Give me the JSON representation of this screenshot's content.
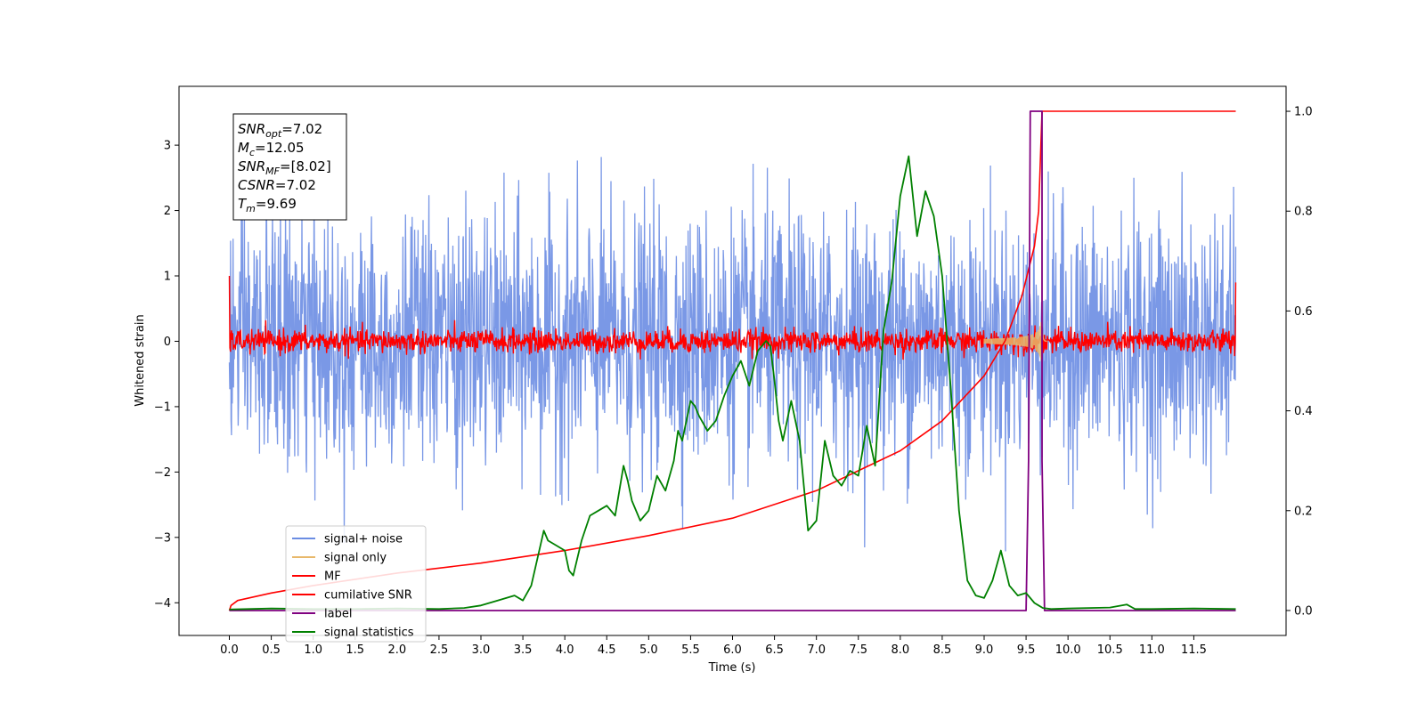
{
  "chart_data": {
    "type": "line",
    "xlabel": "Time (s)",
    "ylabel": "Whitened strain",
    "xlim": [
      -0.6,
      12.6
    ],
    "ylim": [
      -4.5,
      3.9
    ],
    "y2lim": [
      -0.05,
      1.05
    ],
    "x_ticks": [
      "0.0",
      "0.5",
      "1.0",
      "1.5",
      "2.0",
      "2.5",
      "3.0",
      "3.5",
      "4.0",
      "4.5",
      "5.0",
      "5.5",
      "6.0",
      "6.5",
      "7.0",
      "7.5",
      "8.0",
      "8.5",
      "9.0",
      "9.5",
      "10.0",
      "10.5",
      "11.0",
      "11.5"
    ],
    "y_ticks": [
      "3",
      "2",
      "1",
      "0",
      "−1",
      "−2",
      "−3",
      "−4"
    ],
    "y2_ticks": [
      "0.0",
      "0.2",
      "0.4",
      "0.6",
      "0.8",
      "1.0"
    ],
    "info_box": [
      {
        "sym": "SNR",
        "sub": "opt",
        "rest": "=7.02"
      },
      {
        "sym": "M",
        "sub": "c",
        "rest": "=12.05"
      },
      {
        "sym": "SNR",
        "sub": "MF",
        "rest": "=[8.02]"
      },
      {
        "sym": "CSNR",
        "sub": "",
        "rest": "=7.02"
      },
      {
        "sym": "T",
        "sub": "m",
        "rest": "=9.69"
      }
    ],
    "series": [
      {
        "name": "signal+ noise",
        "axis": "left",
        "color": "#6b8de3",
        "kind": "noise",
        "sigma": 0.95,
        "x_range": [
          0.0,
          12.0
        ],
        "approx_extremes": [
          3.5,
          -3.6
        ]
      },
      {
        "name": "signal only",
        "axis": "left",
        "color": "#e8b86b",
        "kind": "chirp",
        "merger_time": 9.69,
        "peak_amplitude": 0.45,
        "x_range": [
          9.0,
          9.75
        ]
      },
      {
        "name": "MF",
        "axis": "left",
        "color": "#ff0000",
        "kind": "noise",
        "sigma": 0.09,
        "start_value": 1.0,
        "end_value": 0.9,
        "x_range": [
          0.0,
          12.0
        ]
      },
      {
        "name": "cumilative SNR",
        "axis": "right",
        "color": "#ff0000",
        "x": [
          0.0,
          0.02,
          0.1,
          0.5,
          1.0,
          2.0,
          3.0,
          4.0,
          5.0,
          6.0,
          7.0,
          7.5,
          8.0,
          8.5,
          9.0,
          9.25,
          9.45,
          9.6,
          9.65,
          9.69,
          12.0
        ],
        "y": [
          0.0,
          0.01,
          0.02,
          0.035,
          0.05,
          0.075,
          0.095,
          0.12,
          0.15,
          0.185,
          0.24,
          0.28,
          0.32,
          0.38,
          0.47,
          0.54,
          0.63,
          0.73,
          0.8,
          1.0,
          1.0
        ]
      },
      {
        "name": "label",
        "axis": "right",
        "color": "#800080",
        "x": [
          0.0,
          9.5,
          9.53,
          9.55,
          9.55,
          9.69,
          9.69,
          9.72,
          9.72,
          12.0
        ],
        "y": [
          0.0,
          0.0,
          0.3,
          1.0,
          1.0,
          1.0,
          0.3,
          0.0,
          0.0,
          0.0
        ]
      },
      {
        "name": "signal statistics",
        "axis": "right",
        "color": "#008000",
        "x": [
          0.0,
          0.5,
          1.0,
          1.5,
          2.0,
          2.5,
          2.8,
          3.0,
          3.2,
          3.4,
          3.5,
          3.6,
          3.75,
          3.8,
          3.9,
          4.0,
          4.05,
          4.1,
          4.2,
          4.3,
          4.4,
          4.5,
          4.6,
          4.7,
          4.75,
          4.8,
          4.9,
          5.0,
          5.1,
          5.2,
          5.3,
          5.35,
          5.4,
          5.5,
          5.55,
          5.6,
          5.7,
          5.8,
          5.9,
          6.0,
          6.1,
          6.2,
          6.3,
          6.4,
          6.45,
          6.5,
          6.55,
          6.6,
          6.7,
          6.8,
          6.9,
          7.0,
          7.1,
          7.2,
          7.3,
          7.4,
          7.5,
          7.6,
          7.7,
          7.8,
          7.9,
          8.0,
          8.1,
          8.2,
          8.3,
          8.4,
          8.5,
          8.6,
          8.7,
          8.8,
          8.9,
          9.0,
          9.1,
          9.2,
          9.3,
          9.4,
          9.5,
          9.6,
          9.65,
          9.7,
          9.8,
          10.0,
          10.5,
          10.7,
          10.8,
          11.0,
          11.5,
          12.0
        ],
        "y": [
          0.002,
          0.004,
          0.003,
          0.003,
          0.004,
          0.003,
          0.005,
          0.01,
          0.02,
          0.03,
          0.02,
          0.05,
          0.16,
          0.14,
          0.13,
          0.12,
          0.08,
          0.07,
          0.14,
          0.19,
          0.2,
          0.21,
          0.19,
          0.29,
          0.26,
          0.22,
          0.18,
          0.2,
          0.27,
          0.24,
          0.3,
          0.36,
          0.34,
          0.42,
          0.41,
          0.39,
          0.36,
          0.38,
          0.43,
          0.47,
          0.5,
          0.45,
          0.52,
          0.54,
          0.53,
          0.46,
          0.38,
          0.34,
          0.42,
          0.34,
          0.16,
          0.18,
          0.34,
          0.27,
          0.25,
          0.28,
          0.27,
          0.37,
          0.29,
          0.56,
          0.66,
          0.83,
          0.91,
          0.75,
          0.84,
          0.79,
          0.67,
          0.45,
          0.2,
          0.06,
          0.03,
          0.025,
          0.06,
          0.12,
          0.05,
          0.03,
          0.035,
          0.015,
          0.01,
          0.005,
          0.003,
          0.004,
          0.006,
          0.012,
          0.003,
          0.003,
          0.004,
          0.003
        ]
      }
    ],
    "legend_position": "lower-left"
  }
}
